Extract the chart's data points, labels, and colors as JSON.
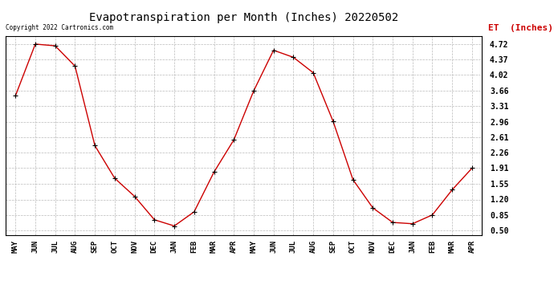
{
  "title": "Evapotranspiration per Month (Inches) 20220502",
  "legend_label": "ET  (Inches)",
  "copyright": "Copyright 2022 Cartronics.com",
  "months": [
    "MAY",
    "JUN",
    "JUL",
    "AUG",
    "SEP",
    "OCT",
    "NOV",
    "DEC",
    "JAN",
    "FEB",
    "MAR",
    "APR",
    "MAY",
    "JUN",
    "JUL",
    "AUG",
    "SEP",
    "OCT",
    "NOV",
    "DEC",
    "JAN",
    "FEB",
    "MAR",
    "APR"
  ],
  "values": [
    3.55,
    4.72,
    4.68,
    4.22,
    2.42,
    1.68,
    1.27,
    0.74,
    0.6,
    0.92,
    1.82,
    2.55,
    3.66,
    4.58,
    4.42,
    4.07,
    2.97,
    1.65,
    1.01,
    0.68,
    0.65,
    0.85,
    1.42,
    1.91
  ],
  "line_color": "#cc0000",
  "marker_color": "#000000",
  "grid_color": "#bbbbbb",
  "yticks": [
    0.5,
    0.85,
    1.2,
    1.55,
    1.91,
    2.26,
    2.61,
    2.96,
    3.31,
    3.66,
    4.02,
    4.37,
    4.72
  ],
  "ylim": [
    0.4,
    4.9
  ],
  "background_color": "#ffffff",
  "title_fontsize": 10,
  "legend_color": "#cc0000",
  "copyright_color": "#000000",
  "tick_fontsize": 7,
  "xtick_fontsize": 6.5
}
